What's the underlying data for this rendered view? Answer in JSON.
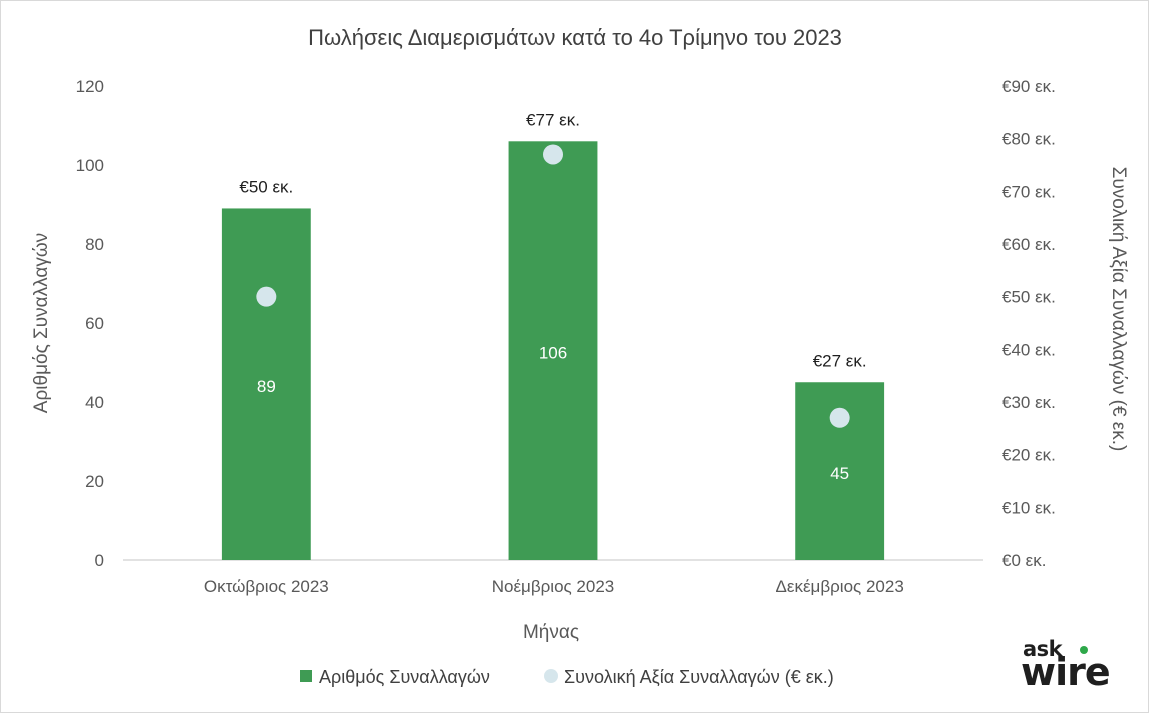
{
  "chart_data": {
    "type": "bar",
    "title": "Πωλήσεις Διαμερισμάτων κατά το 4ο Τρίμηνο του 2023",
    "xlabel": "Μήνας",
    "ylabel": "Αριθμός Συναλλαγών",
    "y2label": "Συνολική Αξία Συναλλαγών (€ εκ.)",
    "categories": [
      "Οκτώβριος 2023",
      "Νοέμβριος 2023",
      "Δεκέμβριος 2023"
    ],
    "ylim": [
      0,
      120
    ],
    "yticks": [
      "0",
      "20",
      "40",
      "60",
      "80",
      "100",
      "120"
    ],
    "y2lim": [
      0,
      90
    ],
    "y2ticks": [
      "€0 εκ.",
      "€10 εκ.",
      "€20 εκ.",
      "€30 εκ.",
      "€40 εκ.",
      "€50 εκ.",
      "€60 εκ.",
      "€70 εκ.",
      "€80 εκ.",
      "€90 εκ."
    ],
    "series": [
      {
        "name": "Αριθμός Συναλλαγών",
        "type": "bar",
        "axis": "left",
        "color": "#3f9b54",
        "values": [
          89,
          106,
          45
        ],
        "labels": [
          "89",
          "106",
          "45"
        ]
      },
      {
        "name": "Συνολική Αξία Συναλλαγών (€ εκ.)",
        "type": "scatter",
        "axis": "right",
        "color": "#d6e6ec",
        "values": [
          50,
          77,
          27
        ],
        "labels": [
          "€50 εκ.",
          "€77 εκ.",
          "€27 εκ."
        ]
      }
    ],
    "grid": false,
    "legend": "bottom"
  },
  "logo": {
    "ask": "ask",
    "wire": "wire"
  }
}
